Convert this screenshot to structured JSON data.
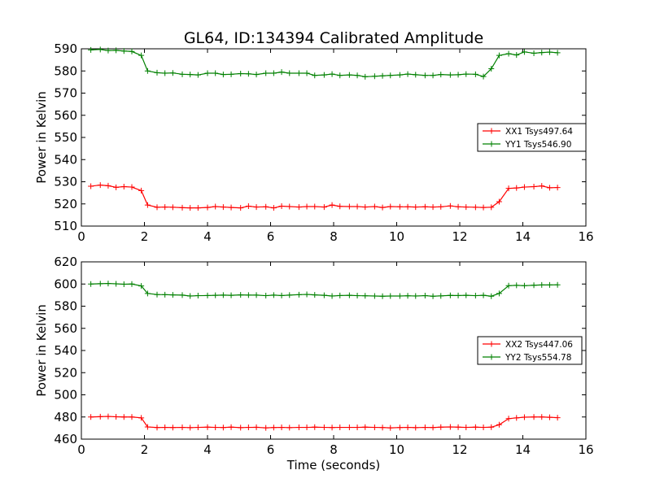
{
  "title": "GL64, ID:134394 Calibrated Amplitude",
  "colors": {
    "xx": "#ff0000",
    "yy": "#008000"
  },
  "chart_data": [
    {
      "type": "line",
      "ylabel": "Power in Kelvin",
      "xlabel": "",
      "xlim": [
        0,
        16
      ],
      "ylim": [
        510,
        590
      ],
      "xticks": [
        "0",
        "2",
        "4",
        "6",
        "8",
        "10",
        "12",
        "14",
        "16"
      ],
      "yticks": [
        "510",
        "520",
        "530",
        "540",
        "550",
        "560",
        "570",
        "580",
        "590"
      ],
      "grid": false,
      "legend_position": "center-right",
      "x": [
        0.3,
        0.6,
        0.85,
        1.1,
        1.35,
        1.6,
        1.9,
        2.1,
        2.4,
        2.65,
        2.9,
        3.2,
        3.45,
        3.7,
        4.0,
        4.25,
        4.5,
        4.75,
        5.05,
        5.3,
        5.55,
        5.85,
        6.1,
        6.35,
        6.6,
        6.9,
        7.15,
        7.4,
        7.7,
        7.95,
        8.2,
        8.5,
        8.75,
        9.0,
        9.3,
        9.55,
        9.8,
        10.1,
        10.35,
        10.6,
        10.9,
        11.15,
        11.4,
        11.7,
        11.95,
        12.2,
        12.5,
        12.75,
        13.0,
        13.25,
        13.55,
        13.8,
        14.05,
        14.35,
        14.6,
        14.85,
        15.1
      ],
      "series": [
        {
          "name": "XX1 Tsys497.64",
          "values": [
            528,
            528.5,
            528.2,
            527.5,
            527.8,
            527.6,
            526,
            519.5,
            518.5,
            518.6,
            518.5,
            518.3,
            518.2,
            518.2,
            518.4,
            518.8,
            518.6,
            518.4,
            518.2,
            519,
            518.6,
            518.7,
            518.2,
            519,
            518.8,
            518.6,
            518.8,
            518.8,
            518.6,
            519.5,
            518.9,
            518.8,
            518.8,
            518.6,
            518.8,
            518.4,
            518.8,
            518.7,
            518.7,
            518.6,
            518.7,
            518.6,
            518.7,
            519.1,
            518.7,
            518.6,
            518.5,
            518.4,
            518.5,
            521,
            527,
            527.2,
            527.6,
            527.8,
            528.1,
            527.3,
            527.4
          ]
        },
        {
          "name": "YY1 Tsys546.90",
          "values": [
            589.5,
            589.7,
            589.2,
            589.3,
            589,
            588.8,
            587,
            580,
            579.2,
            579,
            579.1,
            578.5,
            578.4,
            578.2,
            579,
            579,
            578.4,
            578.5,
            578.8,
            578.7,
            578.4,
            579,
            579,
            579.5,
            579,
            579,
            579,
            578,
            578.2,
            578.6,
            578,
            578.2,
            578,
            577.4,
            577.6,
            577.8,
            578,
            578.2,
            578.6,
            578.3,
            578,
            578,
            578.4,
            578.2,
            578.3,
            578.6,
            578.5,
            577.5,
            581,
            587,
            587.8,
            587.2,
            588.6,
            588,
            588.3,
            588.5,
            588.2
          ]
        }
      ]
    },
    {
      "type": "line",
      "ylabel": "Power in Kelvin",
      "xlabel": "Time (seconds)",
      "xlim": [
        0,
        16
      ],
      "ylim": [
        460,
        620
      ],
      "xticks": [
        "0",
        "2",
        "4",
        "6",
        "8",
        "10",
        "12",
        "14",
        "16"
      ],
      "yticks": [
        "460",
        "480",
        "500",
        "520",
        "540",
        "560",
        "580",
        "600",
        "620"
      ],
      "grid": false,
      "legend_position": "center-right",
      "x": [
        0.3,
        0.6,
        0.85,
        1.1,
        1.35,
        1.6,
        1.9,
        2.1,
        2.4,
        2.65,
        2.9,
        3.2,
        3.45,
        3.7,
        4.0,
        4.25,
        4.5,
        4.75,
        5.05,
        5.3,
        5.55,
        5.85,
        6.1,
        6.35,
        6.6,
        6.9,
        7.15,
        7.4,
        7.7,
        7.95,
        8.2,
        8.5,
        8.75,
        9.0,
        9.3,
        9.55,
        9.8,
        10.1,
        10.35,
        10.6,
        10.9,
        11.15,
        11.4,
        11.7,
        11.95,
        12.2,
        12.5,
        12.75,
        13.0,
        13.25,
        13.55,
        13.8,
        14.05,
        14.35,
        14.6,
        14.85,
        15.1
      ],
      "series": [
        {
          "name": "XX2 Tsys447.06",
          "values": [
            480,
            480.3,
            480.5,
            480.2,
            480,
            480,
            479.2,
            471,
            470.5,
            470.6,
            470.5,
            470.6,
            470.4,
            470.6,
            470.8,
            470.6,
            470.5,
            470.8,
            470.4,
            470.6,
            470.7,
            470.2,
            470.5,
            470.6,
            470.4,
            470.6,
            470.6,
            470.8,
            470.6,
            470.5,
            470.6,
            470.6,
            470.6,
            470.8,
            470.6,
            470.5,
            470.2,
            470.5,
            470.6,
            470.4,
            470.6,
            470.5,
            470.8,
            471,
            470.8,
            470.6,
            470.8,
            470.6,
            470.8,
            473,
            478.5,
            479.2,
            479.8,
            480,
            480,
            479.7,
            479.4
          ]
        },
        {
          "name": "YY2 Tsys554.78",
          "values": [
            600,
            600.3,
            600.5,
            600.2,
            599.8,
            600,
            598.3,
            591.5,
            590.5,
            590.4,
            590.2,
            590,
            589.2,
            589.5,
            589.6,
            589.8,
            590,
            589.8,
            590.2,
            590,
            590,
            589.5,
            590,
            589.6,
            590,
            590.4,
            590.6,
            590.2,
            589.8,
            589.2,
            589.6,
            589.8,
            589.5,
            589.4,
            589.2,
            589,
            589.2,
            589.2,
            589.4,
            589.2,
            589.5,
            589,
            589.3,
            589.7,
            589.6,
            589.8,
            589.5,
            589.8,
            589,
            591.5,
            598.5,
            598.8,
            598.5,
            598.9,
            599.2,
            599.2,
            599.3
          ]
        }
      ]
    }
  ]
}
